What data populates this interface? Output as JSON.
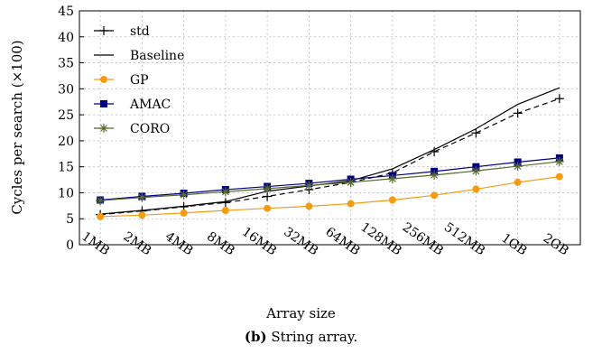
{
  "caption": {
    "label": "(b)",
    "text": "String array."
  },
  "chart_data": {
    "type": "line",
    "xlabel": "Array size",
    "ylabel": "Cycles per search (×100)",
    "categories": [
      "1MB",
      "2MB",
      "4MB",
      "8MB",
      "16MB",
      "32MB",
      "64MB",
      "128MB",
      "256MB",
      "512MB",
      "1GB",
      "2GB"
    ],
    "ylim": [
      0,
      45
    ],
    "yticks": [
      0,
      5,
      10,
      15,
      20,
      25,
      30,
      35,
      40,
      45
    ],
    "grid": true,
    "legend_position": "top-left",
    "series": [
      {
        "name": "std",
        "color": "#000000",
        "dash": true,
        "marker": "plus",
        "values": [
          5.8,
          6.5,
          7.3,
          8.1,
          9.3,
          10.6,
          12.0,
          13.8,
          17.9,
          21.5,
          25.3,
          28.1
        ]
      },
      {
        "name": "Baseline",
        "color": "#000000",
        "dash": false,
        "marker": "none",
        "values": [
          5.9,
          6.6,
          7.4,
          8.3,
          10.3,
          11.3,
          12.3,
          14.6,
          18.3,
          22.3,
          27.0,
          30.2
        ]
      },
      {
        "name": "GP",
        "color": "#f39c12",
        "dash": false,
        "marker": "circle",
        "values": [
          5.4,
          5.7,
          6.1,
          6.6,
          7.0,
          7.4,
          7.9,
          8.6,
          9.5,
          10.7,
          12.0,
          13.1
        ]
      },
      {
        "name": "AMAC",
        "color": "#000080",
        "dash": false,
        "marker": "square",
        "values": [
          8.6,
          9.3,
          9.9,
          10.6,
          11.2,
          11.8,
          12.6,
          13.3,
          14.1,
          15.0,
          15.9,
          16.7
        ]
      },
      {
        "name": "CORO",
        "color": "#556b2f",
        "dash": false,
        "marker": "asterisk",
        "values": [
          8.5,
          9.1,
          9.6,
          10.2,
          10.8,
          11.4,
          12.0,
          12.7,
          13.4,
          14.2,
          15.1,
          16.0
        ]
      }
    ]
  }
}
